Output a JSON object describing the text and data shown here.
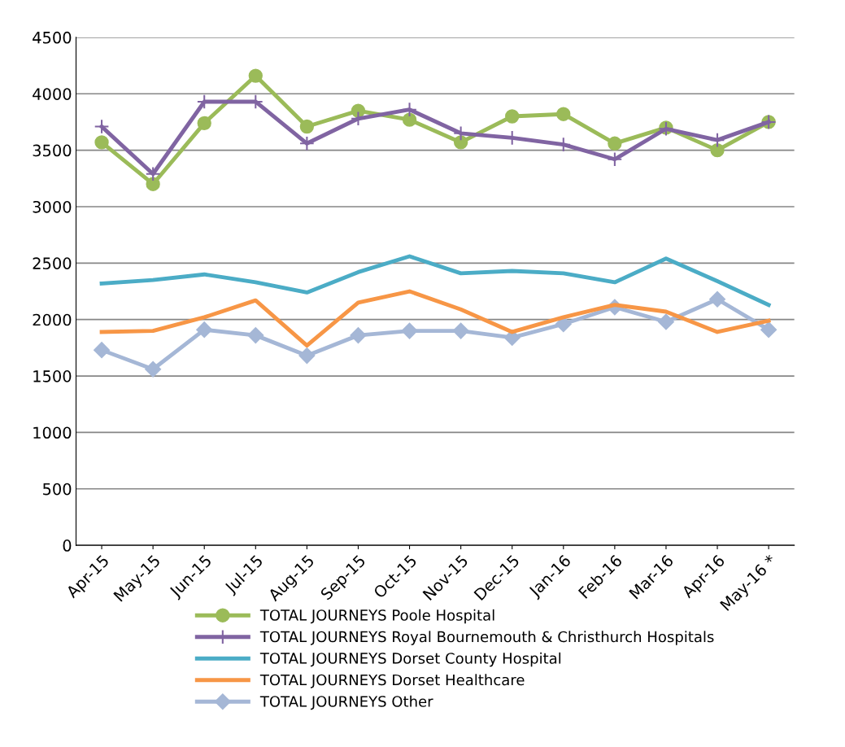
{
  "chart_data": {
    "type": "line",
    "categories": [
      "Apr-15",
      "May-15",
      "Jun-15",
      "Jul-15",
      "Aug-15",
      "Sep-15",
      "Oct-15",
      "Nov-15",
      "Dec-15",
      "Jan-16",
      "Feb-16",
      "Mar-16",
      "Apr-16",
      "May-16 *"
    ],
    "series": [
      {
        "name": "TOTAL JOURNEYS Poole Hospital",
        "color": "#9bbb59",
        "marker": "circle",
        "values": [
          3570,
          3200,
          3740,
          4160,
          3710,
          3850,
          3770,
          3570,
          3800,
          3820,
          3560,
          3700,
          3500,
          3750
        ]
      },
      {
        "name": "TOTAL JOURNEYS Royal Bournemouth & Christhurch Hospitals",
        "color": "#8064a2",
        "marker": "cross",
        "values": [
          3710,
          3290,
          3930,
          3930,
          3560,
          3780,
          3860,
          3650,
          3610,
          3550,
          3420,
          3690,
          3590,
          3750
        ]
      },
      {
        "name": "TOTAL JOURNEYS Dorset County Hospital",
        "color": "#4bacc6",
        "marker": "none",
        "values": [
          2320,
          2350,
          2400,
          2330,
          2240,
          2420,
          2560,
          2410,
          2430,
          2410,
          2330,
          2540,
          2340,
          2130
        ]
      },
      {
        "name": "TOTAL JOURNEYS Dorset Healthcare",
        "color": "#f79646",
        "marker": "none",
        "values": [
          1890,
          1900,
          2020,
          2170,
          1770,
          2150,
          2250,
          2090,
          1890,
          2020,
          2130,
          2070,
          1890,
          1990
        ]
      },
      {
        "name": "TOTAL JOURNEYS Other",
        "color": "#a5b7d6",
        "marker": "diamond",
        "values": [
          1730,
          1560,
          1910,
          1860,
          1680,
          1860,
          1900,
          1900,
          1840,
          1960,
          2110,
          1980,
          2180,
          1910
        ]
      }
    ],
    "ylim": [
      0,
      4500
    ],
    "yticks": [
      0,
      500,
      1000,
      1500,
      2000,
      2500,
      3000,
      3500,
      4000,
      4500
    ],
    "grid": "y",
    "legend": "bottom"
  }
}
